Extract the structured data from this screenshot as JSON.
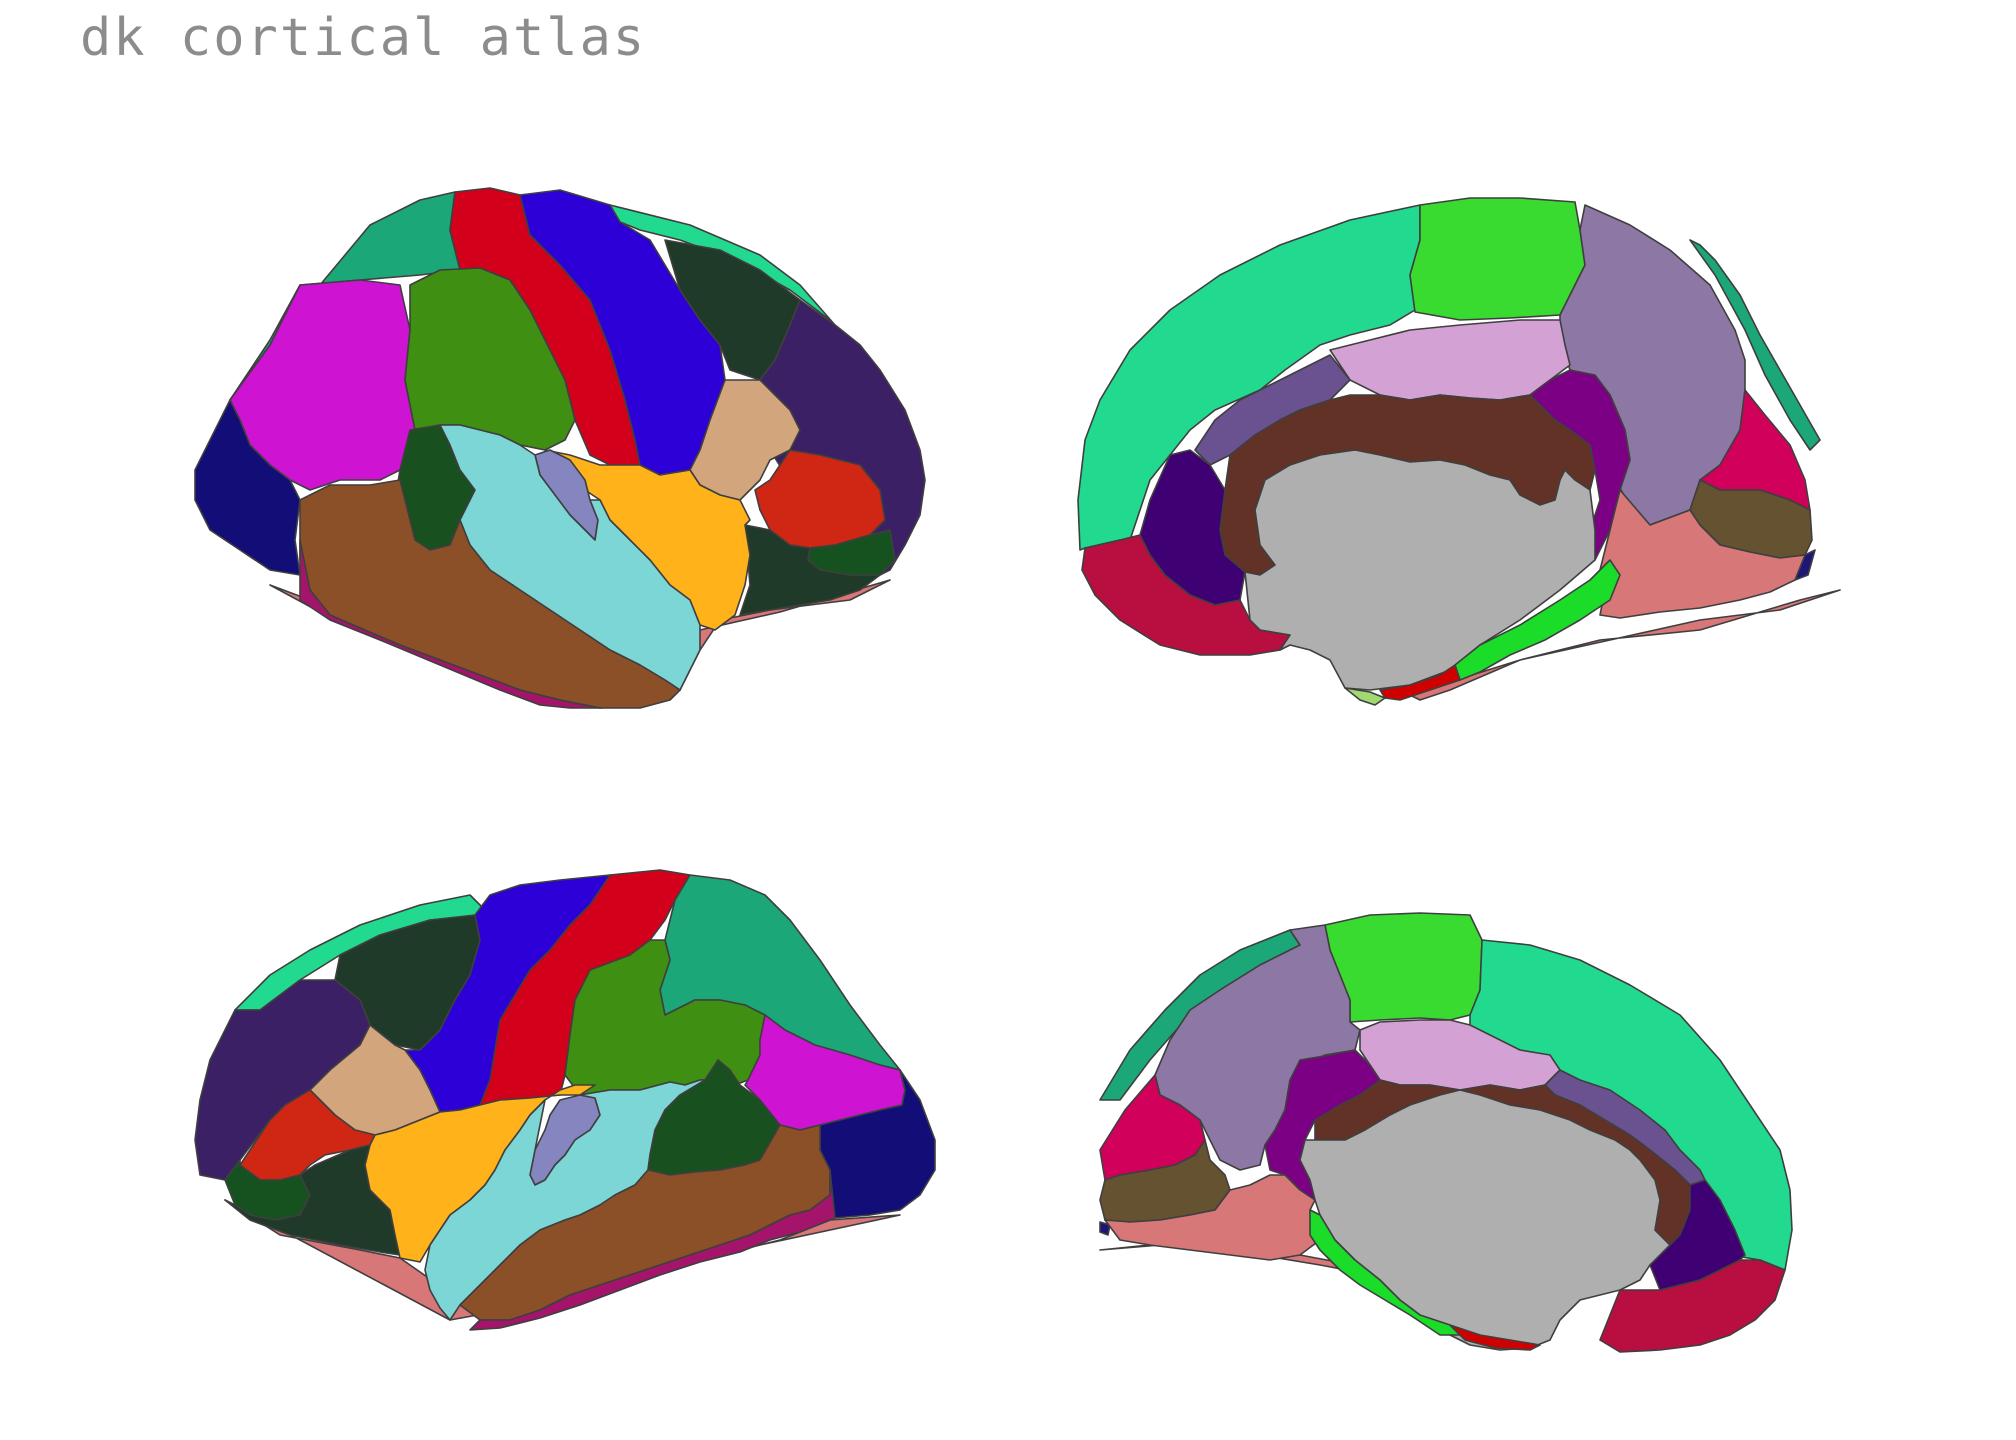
{
  "title": "dk cortical atlas",
  "views": [
    {
      "id": "left-lateral",
      "hemisphere": "left",
      "view": "lateral"
    },
    {
      "id": "left-medial",
      "hemisphere": "left",
      "view": "medial"
    },
    {
      "id": "right-lateral",
      "hemisphere": "right",
      "view": "lateral"
    },
    {
      "id": "right-medial",
      "hemisphere": "right",
      "view": "medial"
    }
  ],
  "colors": {
    "superior_frontal": "#22da8f",
    "caudal_middle_frontal": "#1ca779",
    "precentral": "#2c00d6",
    "postcentral": "#d3001b",
    "supramarginal": "#3f8f13",
    "superior_parietal": "#cf13d2",
    "inferior_parietal": "#6f14d1",
    "lateral_occipital": "#130d77",
    "rostral_middle_frontal": "#3b2066",
    "pars_opercularis": "#d2a57c",
    "pars_triangularis": "#cf2713",
    "pars_orbitalis": "#165220",
    "lateral_orbitofrontal": "#1f3a29",
    "insula": "#ffb21a",
    "transverse_temporal": "#8585c0",
    "superior_temporal": "#7dd6d6",
    "middle_temporal": "#8b5027",
    "inferior_temporal": "#a5146b",
    "bankssts": "#185020",
    "caudal_anterior_cingulate": "#7b0084",
    "posterior_cingulate": "#d4a1d4",
    "isthmus_cingulate": "#6a5190",
    "corpus_callosum_region": "#633227",
    "medial_wall": "#afafaf",
    "precuneus": "#8d77a4",
    "paracentral": "#3adb31",
    "medial_orbitofrontal": "#b80e40",
    "rostral_anterior_cingulate": "#3f0073",
    "frontal_pole": "#3f2b11",
    "temporal_pole": "#d00000",
    "parahippocampal": "#1cdc2a",
    "entorhinal": "#a2d872",
    "fusiform": "#d77778",
    "lingual": "#655230",
    "cuneus": "#d1005a",
    "pericalcarine": "#1d1677",
    "outline": "#3f3f3f"
  }
}
